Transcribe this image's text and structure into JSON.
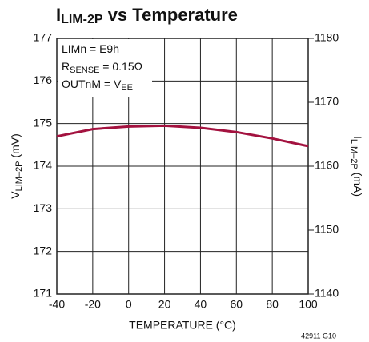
{
  "chart_data": {
    "type": "line",
    "title": {
      "main": "I",
      "sub": "LIM-2P",
      "rest": " vs Temperature"
    },
    "y_label": {
      "main": "V",
      "sub": "LIM–2P",
      "rest": " (mV)"
    },
    "y2_label": {
      "main": "I",
      "sub": "LIM–2P",
      "rest": " (mA)"
    },
    "x_label": "TEMPERATURE (°C)",
    "annotations": [
      {
        "main": "LIMn = E9h"
      },
      {
        "main": "R",
        "sub": "SENSE",
        "rest": " = 0.15Ω"
      },
      {
        "main": "OUTnM = V",
        "sub": "EE"
      }
    ],
    "footnote": "42911 G10",
    "x": [
      -40,
      -20,
      0,
      20,
      40,
      60,
      80,
      100
    ],
    "series": [
      {
        "color": "#a3123f",
        "values": [
          174.7,
          174.87,
          174.93,
          174.95,
          174.9,
          174.8,
          174.65,
          174.47
        ]
      }
    ],
    "xlim": [
      -40,
      100
    ],
    "xticks": [
      -40,
      -20,
      0,
      20,
      40,
      60,
      80,
      100
    ],
    "ylim": [
      171,
      177
    ],
    "yticks": [
      171,
      172,
      173,
      174,
      175,
      176,
      177
    ],
    "y2lim": [
      1140,
      1180
    ],
    "y2ticks": [
      1140,
      1150,
      1160,
      1170,
      1180
    ],
    "grid": true
  }
}
